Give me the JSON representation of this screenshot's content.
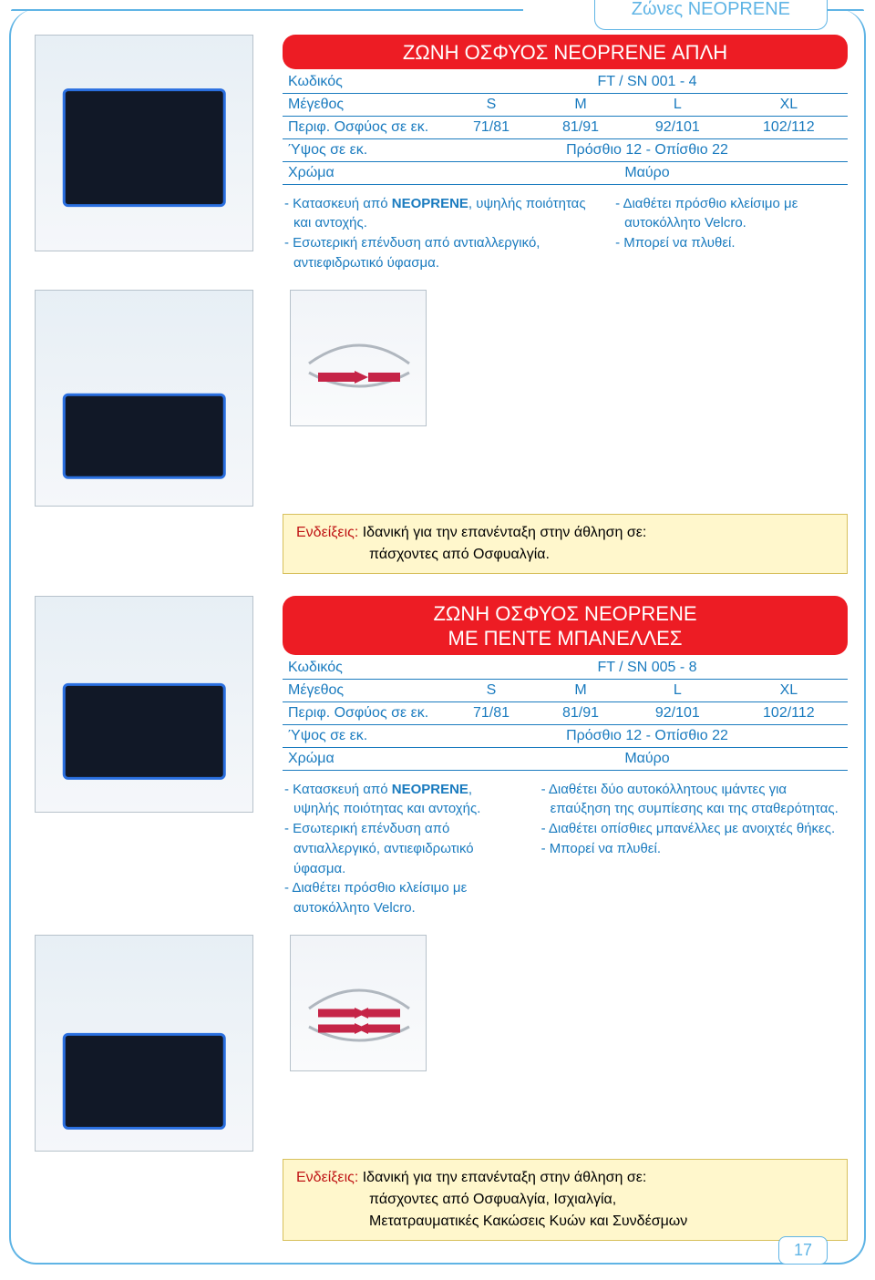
{
  "page": {
    "category_tab": "Ζώνες NEOPRENE",
    "page_number": "17"
  },
  "product1": {
    "title": "ΖΩΝΗ ΟΣΦΥΟΣ NEOPRENE ΑΠΛΗ",
    "specs": {
      "code_label": "Κωδικός",
      "code_value": "FT / SN 001 - 4",
      "size_label": "Μέγεθος",
      "sizes": [
        "S",
        "M",
        "L",
        "XL"
      ],
      "circ_label": "Περιφ. Οσφύος σε εκ.",
      "circ_values": [
        "71/81",
        "81/91",
        "92/101",
        "102/112"
      ],
      "height_label": "Ύψος σε εκ.",
      "height_value": "Πρόσθιο 12 - Οπίσθιο 22",
      "color_label": "Χρώμα",
      "color_value": "Μαύρο"
    },
    "left_bullets": [
      "- Κατασκευή από <b>NEOPRENE</b>, υψηλής ποιότητας και αντοχής.",
      "- Εσωτερική επένδυση από αντιαλλεργικό, αντιεφιδρωτικό ύφασμα."
    ],
    "right_bullets": [
      "- Διαθέτει πρόσθιο κλείσιμο με αυτοκόλλητο Velcro.",
      "- Μπορεί να πλυθεί."
    ],
    "indication_label": "Ενδείξεις:",
    "indication_text": "Ιδανική για την επανένταξη στην άθληση σε:",
    "indication_line2": "πάσχοντες από Οσφυαλγία."
  },
  "product2": {
    "title_line1": "ΖΩΝΗ ΟΣΦΥΟΣ NEOPRENE",
    "title_line2": "ΜΕ ΠΕΝΤΕ ΜΠΑΝΕΛΛΕΣ",
    "specs": {
      "code_label": "Κωδικός",
      "code_value": "FT / SN 005 - 8",
      "size_label": "Μέγεθος",
      "sizes": [
        "S",
        "M",
        "L",
        "XL"
      ],
      "circ_label": "Περιφ. Οσφύος σε εκ.",
      "circ_values": [
        "71/81",
        "81/91",
        "92/101",
        "102/112"
      ],
      "height_label": "Ύψος σε εκ.",
      "height_value": "Πρόσθιο 12 - Οπίσθιο 22",
      "color_label": "Χρώμα",
      "color_value": "Μαύρο"
    },
    "left_bullets": [
      "- Κατασκευή από <b>NEOPRENE</b>, υψηλής ποιότητας και αντοχής.",
      "- Εσωτερική επένδυση από αντιαλλεργικό, αντιεφιδρωτικό ύφασμα.",
      "- Διαθέτει πρόσθιο κλείσιμο με αυτοκόλλητο Velcro."
    ],
    "right_bullets": [
      "- Διαθέτει δύο αυτοκόλλητους ιμάντες για επαύξηση της συμπίεσης και της σταθερότητας.",
      "- Διαθέτει οπίσθιες μπανέλλες με ανοιχτές θήκες.",
      "- Μπορεί να πλυθεί."
    ],
    "indication_label": "Ενδείξεις:",
    "indication_text": "Ιδανική για την επανένταξη στην άθληση σε:",
    "indication_line2": "πάσχοντες από Οσφυαλγία, Ισχιαλγία,",
    "indication_line3": "Μετατραυματικές Κακώσεις Κυών και Συνδέσμων"
  }
}
